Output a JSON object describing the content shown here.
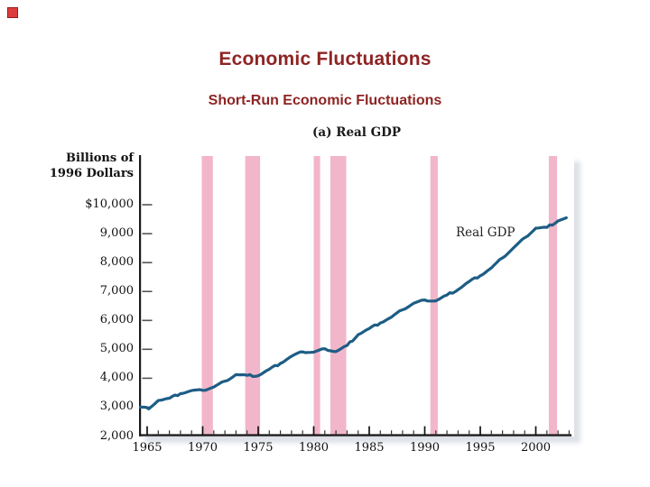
{
  "slide": {
    "title": "Economic Fluctuations",
    "subtitle": "Short-Run Economic Fluctuations",
    "title_color": "#8e2424",
    "corner_marker_color": "#dd3c3c"
  },
  "chart_data": {
    "type": "line",
    "title": "(a) Real GDP",
    "y_axis_title_lines": [
      "Billions of",
      "1996 Dollars"
    ],
    "series_label": "Real GDP",
    "grid": false,
    "legend_position": "inline-label",
    "ylim": [
      2000,
      10000
    ],
    "xlim": [
      1964.3,
      2003.2
    ],
    "y_tick_labels": [
      "$10,000",
      "9,000",
      "8,000",
      "7,000",
      "6,000",
      "5,000",
      "4,000",
      "3,000",
      "2,000"
    ],
    "y_tick_values": [
      10000,
      9000,
      8000,
      7000,
      6000,
      5000,
      4000,
      3000,
      2000
    ],
    "x_tick_labels": [
      "1965",
      "1970",
      "1975",
      "1980",
      "1985",
      "1990",
      "1995",
      "2000"
    ],
    "x_tick_values": [
      1965,
      1970,
      1975,
      1980,
      1985,
      1990,
      1995,
      2000
    ],
    "minor_x_ticks_every_year_from": 1965,
    "minor_x_ticks_every_year_to": 2003,
    "line_color": "#1d5d85",
    "recession_band_color": "#f2b6ca",
    "recessions": [
      [
        1969.92,
        1970.92
      ],
      [
        1973.83,
        1975.17
      ],
      [
        1980.0,
        1980.58
      ],
      [
        1981.5,
        1982.92
      ],
      [
        1990.5,
        1991.17
      ],
      [
        2001.17,
        2001.92
      ]
    ],
    "series": [
      {
        "name": "Real GDP",
        "x": [
          1964.35,
          1964.9,
          1965.15,
          1965.6,
          1966,
          1967,
          1968,
          1969,
          1970,
          1971,
          1972,
          1973,
          1974,
          1975,
          1976,
          1977,
          1978,
          1979,
          1980,
          1981,
          1982,
          1983,
          1984,
          1985,
          1986,
          1987,
          1988,
          1989,
          1990,
          1991,
          1992,
          1993,
          1994,
          1995,
          1996,
          1997,
          1998,
          1999,
          2000,
          2001,
          2002,
          2002.75
        ],
        "values": [
          3000,
          2995,
          2940,
          3085,
          3228,
          3308,
          3466,
          3571,
          3578,
          3697,
          3898,
          4123,
          4099,
          4084,
          4312,
          4511,
          4761,
          4912,
          4901,
          5021,
          4919,
          5132,
          5505,
          5717,
          5912,
          6113,
          6368,
          6592,
          6708,
          6676,
          6880,
          7063,
          7348,
          7544,
          7813,
          8160,
          8509,
          8859,
          9191,
          9215,
          9440,
          9550
        ]
      }
    ]
  }
}
